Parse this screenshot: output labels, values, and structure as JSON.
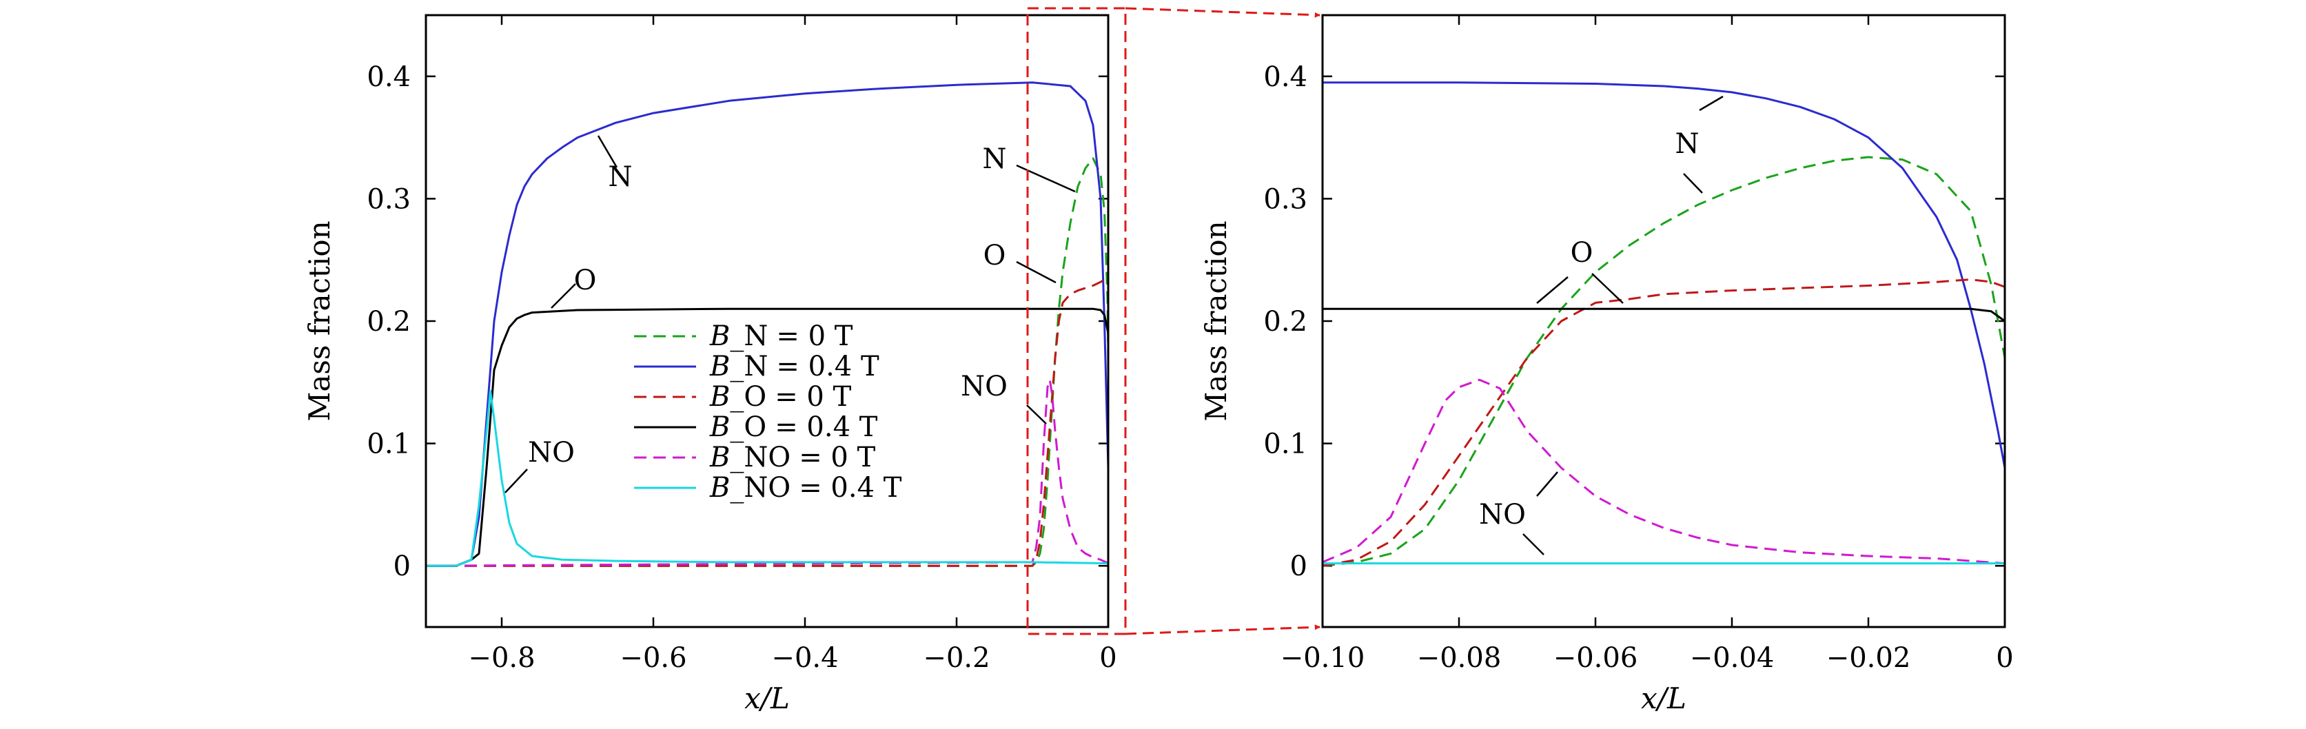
{
  "chart_data": [
    {
      "type": "line",
      "xlabel": "x/L",
      "ylabel": "Mass fraction",
      "xlim": [
        -0.9,
        0.0
      ],
      "ylim": [
        -0.05,
        0.45
      ],
      "xticks": [
        -0.8,
        -0.6,
        -0.4,
        -0.2,
        0.0
      ],
      "xtick_labels": [
        "−0.8",
        "−0.6",
        "−0.4",
        "−0.2",
        "0"
      ],
      "yticks": [
        0,
        0.1,
        0.2,
        0.3,
        0.4
      ],
      "ytick_labels": [
        "0",
        "0.1",
        "0.2",
        "0.3",
        "0.4"
      ],
      "legend_placement": "center",
      "series": [
        {
          "name": "B_N = 0 T",
          "color": "#1aa31a",
          "dash": "dashed",
          "x": [
            -0.9,
            -0.1,
            -0.095,
            -0.09,
            -0.085,
            -0.08,
            -0.075,
            -0.07,
            -0.065,
            -0.06,
            -0.05,
            -0.04,
            -0.03,
            -0.02,
            -0.01,
            -0.005,
            -0.001,
            0.0
          ],
          "y": [
            0,
            0,
            0.003,
            0.01,
            0.03,
            0.07,
            0.12,
            0.17,
            0.21,
            0.24,
            0.28,
            0.31,
            0.325,
            0.333,
            0.32,
            0.29,
            0.22,
            0.17
          ]
        },
        {
          "name": "B_N = 0.4 T",
          "color": "#2b2bd0",
          "dash": "solid",
          "x": [
            -0.9,
            -0.86,
            -0.84,
            -0.83,
            -0.82,
            -0.81,
            -0.8,
            -0.79,
            -0.78,
            -0.77,
            -0.76,
            -0.74,
            -0.72,
            -0.7,
            -0.65,
            -0.6,
            -0.5,
            -0.4,
            -0.3,
            -0.2,
            -0.1,
            -0.05,
            -0.03,
            -0.02,
            -0.01,
            -0.005,
            0.0
          ],
          "y": [
            0,
            0,
            0.005,
            0.04,
            0.12,
            0.2,
            0.24,
            0.27,
            0.295,
            0.31,
            0.32,
            0.333,
            0.342,
            0.35,
            0.362,
            0.37,
            0.38,
            0.386,
            0.39,
            0.393,
            0.395,
            0.392,
            0.38,
            0.36,
            0.3,
            0.2,
            0.08
          ]
        },
        {
          "name": "B_O = 0 T",
          "color": "#c01818",
          "dash": "dashed",
          "x": [
            -0.9,
            -0.1,
            -0.095,
            -0.09,
            -0.085,
            -0.08,
            -0.075,
            -0.07,
            -0.065,
            -0.06,
            -0.05,
            -0.04,
            -0.03,
            -0.02,
            -0.01,
            -0.005,
            0.0
          ],
          "y": [
            0,
            0,
            0.005,
            0.02,
            0.05,
            0.09,
            0.13,
            0.17,
            0.2,
            0.215,
            0.222,
            0.225,
            0.227,
            0.229,
            0.232,
            0.234,
            0.23
          ]
        },
        {
          "name": "B_O = 0.4 T",
          "color": "#000000",
          "dash": "solid",
          "x": [
            -0.9,
            -0.86,
            -0.84,
            -0.83,
            -0.82,
            -0.81,
            -0.8,
            -0.79,
            -0.78,
            -0.77,
            -0.76,
            -0.7,
            -0.5,
            -0.3,
            -0.1,
            -0.02,
            -0.01,
            -0.005,
            0.0
          ],
          "y": [
            0,
            0,
            0.005,
            0.01,
            0.08,
            0.16,
            0.18,
            0.195,
            0.202,
            0.205,
            0.207,
            0.209,
            0.21,
            0.21,
            0.21,
            0.21,
            0.209,
            0.205,
            0.19
          ]
        },
        {
          "name": "B_NO = 0 T",
          "color": "#d01ad0",
          "dash": "dashed",
          "x": [
            -0.9,
            -0.1,
            -0.095,
            -0.09,
            -0.085,
            -0.08,
            -0.077,
            -0.074,
            -0.07,
            -0.065,
            -0.06,
            -0.05,
            -0.04,
            -0.03,
            -0.02,
            -0.01,
            0.0
          ],
          "y": [
            0,
            0.003,
            0.015,
            0.04,
            0.1,
            0.146,
            0.152,
            0.14,
            0.11,
            0.08,
            0.055,
            0.03,
            0.015,
            0.01,
            0.007,
            0.005,
            0.002
          ]
        },
        {
          "name": "B_NO = 0.4 T",
          "color": "#18d8e0",
          "dash": "solid",
          "x": [
            -0.9,
            -0.86,
            -0.84,
            -0.83,
            -0.82,
            -0.815,
            -0.81,
            -0.8,
            -0.79,
            -0.78,
            -0.76,
            -0.72,
            -0.65,
            -0.5,
            -0.3,
            -0.1,
            0.0
          ],
          "y": [
            0,
            0,
            0.005,
            0.05,
            0.11,
            0.143,
            0.12,
            0.07,
            0.035,
            0.018,
            0.008,
            0.005,
            0.004,
            0.003,
            0.003,
            0.003,
            0.002
          ]
        }
      ],
      "annotations": [
        "N",
        "O",
        "NO",
        "N",
        "O",
        "NO"
      ]
    },
    {
      "type": "line",
      "xlabel": "x/L",
      "ylabel": "Mass fraction",
      "xlim": [
        -0.1,
        0.0
      ],
      "ylim": [
        -0.05,
        0.45
      ],
      "xticks": [
        -0.1,
        -0.08,
        -0.06,
        -0.04,
        -0.02,
        0.0
      ],
      "xtick_labels": [
        "−0.10",
        "−0.08",
        "−0.06",
        "−0.04",
        "−0.02",
        "0"
      ],
      "yticks": [
        0,
        0.1,
        0.2,
        0.3,
        0.4
      ],
      "ytick_labels": [
        "0",
        "0.1",
        "0.2",
        "0.3",
        "0.4"
      ],
      "series": [
        {
          "name": "B_N = 0 T",
          "color": "#1aa31a",
          "dash": "dashed",
          "x": [
            -0.1,
            -0.095,
            -0.09,
            -0.085,
            -0.08,
            -0.075,
            -0.07,
            -0.065,
            -0.06,
            -0.055,
            -0.05,
            -0.045,
            -0.04,
            -0.035,
            -0.03,
            -0.025,
            -0.02,
            -0.015,
            -0.01,
            -0.005,
            -0.002,
            0.0
          ],
          "y": [
            0,
            0.003,
            0.01,
            0.03,
            0.07,
            0.12,
            0.17,
            0.21,
            0.24,
            0.262,
            0.28,
            0.295,
            0.307,
            0.317,
            0.325,
            0.331,
            0.334,
            0.332,
            0.32,
            0.29,
            0.23,
            0.17
          ]
        },
        {
          "name": "B_N = 0.4 T",
          "color": "#2b2bd0",
          "dash": "solid",
          "x": [
            -0.1,
            -0.08,
            -0.06,
            -0.05,
            -0.045,
            -0.04,
            -0.035,
            -0.03,
            -0.025,
            -0.02,
            -0.015,
            -0.01,
            -0.007,
            -0.005,
            -0.003,
            -0.001,
            0.0
          ],
          "y": [
            0.395,
            0.395,
            0.394,
            0.392,
            0.39,
            0.387,
            0.382,
            0.375,
            0.365,
            0.35,
            0.325,
            0.285,
            0.25,
            0.21,
            0.165,
            0.11,
            0.08
          ]
        },
        {
          "name": "B_O = 0 T",
          "color": "#c01818",
          "dash": "dashed",
          "x": [
            -0.1,
            -0.095,
            -0.09,
            -0.085,
            -0.08,
            -0.075,
            -0.07,
            -0.065,
            -0.06,
            -0.055,
            -0.05,
            -0.04,
            -0.03,
            -0.02,
            -0.01,
            -0.005,
            -0.002,
            0.0
          ],
          "y": [
            0,
            0.005,
            0.02,
            0.05,
            0.09,
            0.13,
            0.17,
            0.2,
            0.215,
            0.218,
            0.222,
            0.225,
            0.227,
            0.229,
            0.232,
            0.234,
            0.232,
            0.228
          ]
        },
        {
          "name": "B_O = 0.4 T",
          "color": "#000000",
          "dash": "solid",
          "x": [
            -0.1,
            -0.08,
            -0.06,
            -0.04,
            -0.02,
            -0.01,
            -0.005,
            -0.002,
            0.0
          ],
          "y": [
            0.21,
            0.21,
            0.21,
            0.21,
            0.21,
            0.21,
            0.21,
            0.208,
            0.2
          ]
        },
        {
          "name": "B_NO = 0 T",
          "color": "#d01ad0",
          "dash": "dashed",
          "x": [
            -0.1,
            -0.095,
            -0.09,
            -0.085,
            -0.082,
            -0.08,
            -0.077,
            -0.074,
            -0.07,
            -0.065,
            -0.06,
            -0.055,
            -0.05,
            -0.045,
            -0.04,
            -0.03,
            -0.02,
            -0.01,
            -0.005,
            0.0
          ],
          "y": [
            0.003,
            0.015,
            0.04,
            0.1,
            0.135,
            0.146,
            0.152,
            0.145,
            0.11,
            0.08,
            0.057,
            0.042,
            0.031,
            0.023,
            0.017,
            0.011,
            0.008,
            0.006,
            0.004,
            0.002
          ]
        },
        {
          "name": "B_NO = 0.4 T",
          "color": "#18d8e0",
          "dash": "solid",
          "x": [
            -0.1,
            -0.08,
            -0.06,
            -0.04,
            -0.02,
            0.0
          ],
          "y": [
            0.002,
            0.002,
            0.002,
            0.002,
            0.002,
            0.002
          ]
        }
      ],
      "annotations": [
        "N",
        "O",
        "NO"
      ]
    }
  ],
  "legend": [
    {
      "prefix": "B",
      "sub": "_N",
      "eq": "= 0 T",
      "color": "#1aa31a",
      "dash": "dashed"
    },
    {
      "prefix": "B",
      "sub": "_N",
      "eq": "= 0.4 T",
      "color": "#2b2bd0",
      "dash": "solid"
    },
    {
      "prefix": "B",
      "sub": "_O",
      "eq": "= 0 T",
      "color": "#c01818",
      "dash": "dashed"
    },
    {
      "prefix": "B",
      "sub": "_O",
      "eq": "= 0.4 T",
      "color": "#000000",
      "dash": "solid"
    },
    {
      "prefix": "B",
      "sub": "_NO",
      "eq": "= 0 T",
      "color": "#d01ad0",
      "dash": "dashed"
    },
    {
      "prefix": "B",
      "sub": "_NO",
      "eq": "= 0.4 T",
      "color": "#18d8e0",
      "dash": "solid"
    }
  ],
  "zoom_box_color": "#e01818"
}
